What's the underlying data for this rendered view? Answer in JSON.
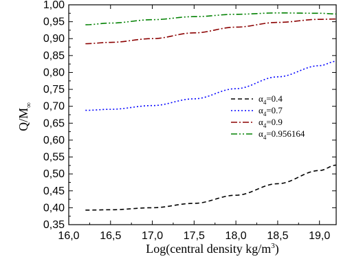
{
  "chart_data": {
    "type": "line",
    "xlabel": "Log(central density kg/m3)",
    "xlabel_main": "Log(central density kg/m",
    "xlabel_sup": "3",
    "xlabel_close": ")",
    "ylabel": "Q/M∞",
    "ylabel_main": "Q/M",
    "ylabel_sub": "∞",
    "xlim": [
      16.0,
      19.2
    ],
    "ylim": [
      0.35,
      1.0
    ],
    "x_ticks": [
      "16,0",
      "16,5",
      "17,0",
      "17,5",
      "18,0",
      "18,5",
      "19,0"
    ],
    "x_tick_values": [
      16.0,
      16.5,
      17.0,
      17.5,
      18.0,
      18.5,
      19.0
    ],
    "y_ticks": [
      "0,35",
      "0,40",
      "0,45",
      "0,50",
      "0,55",
      "0,60",
      "0,65",
      "0,70",
      "0,75",
      "0,80",
      "0,85",
      "0,90",
      "0,95",
      "1,00"
    ],
    "y_tick_values": [
      0.35,
      0.4,
      0.45,
      0.5,
      0.55,
      0.6,
      0.65,
      0.7,
      0.75,
      0.8,
      0.85,
      0.9,
      0.95,
      1.0
    ],
    "legend_position": "right-middle",
    "grid": false,
    "series": [
      {
        "name": "α4=0.4",
        "label_prefix": "α",
        "label_sub": "4",
        "label_value": "=0.4",
        "color": "#000000",
        "dash": "6,4",
        "x": [
          16.2,
          16.5,
          17.0,
          17.5,
          18.0,
          18.5,
          19.0,
          19.2
        ],
        "values": [
          0.393,
          0.394,
          0.4,
          0.413,
          0.437,
          0.471,
          0.51,
          0.526
        ]
      },
      {
        "name": "α4=0.7",
        "label_prefix": "α",
        "label_sub": "4",
        "label_value": "=0.7",
        "color": "#0000ff",
        "dash": "2,3",
        "x": [
          16.2,
          16.5,
          17.0,
          17.5,
          18.0,
          18.5,
          19.0,
          19.2
        ],
        "values": [
          0.688,
          0.691,
          0.702,
          0.722,
          0.752,
          0.787,
          0.82,
          0.833
        ]
      },
      {
        "name": "α4=0.9",
        "label_prefix": "α",
        "label_sub": "4",
        "label_value": "=0.9",
        "color": "#8b0000",
        "dash": "9,3,2,3",
        "x": [
          16.2,
          16.5,
          17.0,
          17.5,
          18.0,
          18.5,
          19.0,
          19.2
        ],
        "values": [
          0.885,
          0.889,
          0.9,
          0.917,
          0.934,
          0.948,
          0.957,
          0.958
        ]
      },
      {
        "name": "α4=0.956164",
        "label_prefix": "α",
        "label_sub": "4",
        "label_value": "=0.956164",
        "color": "#008000",
        "dash": "9,3,2,3,2,3",
        "x": [
          16.2,
          16.5,
          17.0,
          17.5,
          18.0,
          18.5,
          19.0,
          19.2
        ],
        "values": [
          0.941,
          0.946,
          0.956,
          0.965,
          0.972,
          0.976,
          0.975,
          0.973
        ]
      }
    ]
  }
}
